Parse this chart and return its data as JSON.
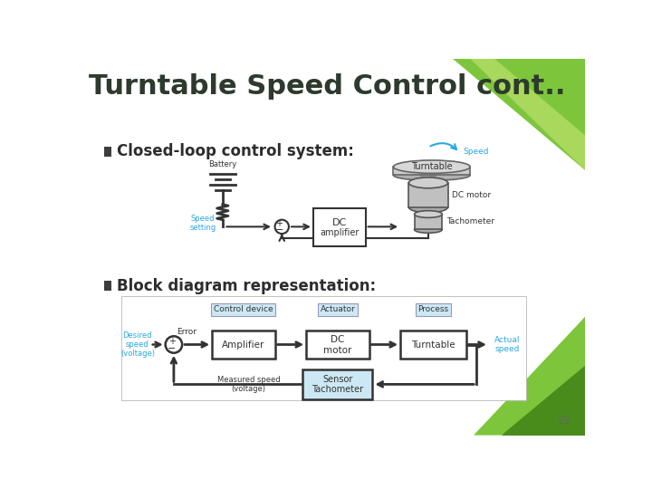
{
  "title": "Turntable Speed Control cont..",
  "title_fontsize": 22,
  "title_color": "#2d3a2d",
  "bg_color": "#ffffff",
  "bullet1_text": "Closed-loop control system:",
  "bullet2_text": "Block diagram representation:",
  "bullet_fontsize": 12,
  "cyan_color": "#29a8e0",
  "dark_color": "#333333",
  "box_fill": "#ffffff",
  "sensor_fill": "#cce8f4",
  "label_fill": "#cce8f4",
  "slide_number": "22",
  "green1_color": "#7dc63b",
  "green2_color": "#4a8c1c",
  "green3_color": "#a8d85c"
}
